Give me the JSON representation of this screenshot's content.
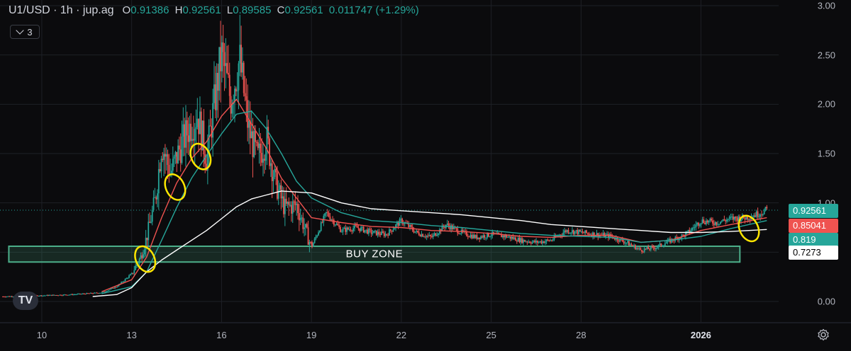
{
  "header": {
    "symbol": "U1/USD · 1h · jup.ag",
    "open_label": "O",
    "open": "0.91386",
    "high_label": "H",
    "high": "0.92561",
    "low_label": "L",
    "low": "0.89585",
    "close_label": "C",
    "close": "0.92561",
    "change": "0.011747 (+1.29%)"
  },
  "indicators_button": {
    "count": "3"
  },
  "annotations": {
    "buy_zone_label": "BUY ZONE"
  },
  "colors": {
    "up": "#26a69a",
    "down": "#ef5350",
    "ma_fast": "#ef5350",
    "ma_mid": "#26a69a",
    "ma_slow": "#ffffff",
    "buy_zone": "#4caf8a",
    "highlight": "#ffe600"
  },
  "price_tags": [
    {
      "value": "0.92561",
      "bg": "#26a69a",
      "fg": "#ffffff"
    },
    {
      "value": "0.85041",
      "bg": "#ef5350",
      "fg": "#ffffff"
    },
    {
      "value": "0.819",
      "bg": "#26a69a",
      "fg": "#ffffff"
    },
    {
      "value": "0.7273",
      "bg": "#ffffff",
      "fg": "#000000"
    }
  ],
  "chart_data": {
    "type": "candlestick",
    "title": "U1/USD · 1h · jup.ag",
    "ylim": [
      -0.25,
      3.0
    ],
    "y_ticks": [
      "3.00",
      "2.50",
      "2.00",
      "1.50",
      "1.00",
      "0.00"
    ],
    "x_ticks": [
      "10",
      "13",
      "16",
      "19",
      "22",
      "25",
      "28",
      "2026"
    ],
    "x_tick_days": [
      10,
      13,
      16,
      19,
      22,
      25,
      28,
      32
    ],
    "xlim_days": [
      8.7,
      34.5
    ],
    "last_price": 0.92561,
    "price_series": {
      "x_days": [
        8.7,
        10,
        11,
        12,
        12.5,
        13,
        13.3,
        13.5,
        13.8,
        14.0,
        14.3,
        14.6,
        14.9,
        15.2,
        15.5,
        15.8,
        16.0,
        16.3,
        16.6,
        16.9,
        17.2,
        17.5,
        17.8,
        18.1,
        18.5,
        19.0,
        19.5,
        20.0,
        20.5,
        21,
        21.5,
        22,
        22.5,
        23,
        23.5,
        24,
        24.5,
        25,
        25.5,
        26,
        26.5,
        27,
        27.5,
        28,
        28.5,
        29,
        29.5,
        30,
        30.5,
        31,
        31.5,
        32,
        32.5,
        33,
        33.5,
        34,
        34.2
      ],
      "close": [
        0.05,
        0.06,
        0.07,
        0.09,
        0.15,
        0.28,
        0.45,
        0.65,
        1.05,
        1.6,
        1.3,
        1.55,
        1.75,
        1.9,
        1.45,
        2.1,
        2.5,
        2.05,
        2.45,
        1.75,
        1.45,
        1.65,
        1.2,
        0.95,
        0.98,
        0.55,
        0.9,
        0.72,
        0.75,
        0.7,
        0.68,
        0.82,
        0.7,
        0.65,
        0.78,
        0.7,
        0.65,
        0.68,
        0.66,
        0.62,
        0.6,
        0.62,
        0.72,
        0.7,
        0.68,
        0.66,
        0.6,
        0.52,
        0.55,
        0.62,
        0.68,
        0.82,
        0.8,
        0.84,
        0.85,
        0.9,
        0.93
      ]
    },
    "series": [
      {
        "name": "",
        "color": "#ef5350",
        "x_days": [
          12,
          13,
          13.5,
          14,
          14.5,
          15,
          15.5,
          16,
          16.5,
          17,
          17.5,
          18,
          18.5,
          19,
          20,
          21,
          22,
          23,
          24,
          25,
          26,
          27,
          28,
          29,
          30,
          31,
          32,
          33,
          34.2
        ],
        "values": [
          0.1,
          0.22,
          0.45,
          0.85,
          1.2,
          1.45,
          1.62,
          1.88,
          2.05,
          1.8,
          1.55,
          1.25,
          1.05,
          0.85,
          0.8,
          0.76,
          0.75,
          0.72,
          0.71,
          0.69,
          0.66,
          0.65,
          0.67,
          0.67,
          0.6,
          0.62,
          0.72,
          0.78,
          0.85
        ]
      },
      {
        "name": "",
        "color": "#26a69a",
        "x_days": [
          12,
          13,
          13.5,
          14,
          14.5,
          15,
          15.5,
          16,
          16.5,
          17,
          17.5,
          18,
          18.5,
          19,
          20,
          21,
          22,
          23,
          24,
          25,
          26,
          27,
          28,
          29,
          30,
          31,
          32,
          33,
          34.2
        ],
        "values": [
          0.08,
          0.15,
          0.3,
          0.62,
          0.95,
          1.25,
          1.48,
          1.7,
          1.9,
          1.93,
          1.75,
          1.5,
          1.22,
          1.05,
          0.9,
          0.82,
          0.8,
          0.77,
          0.75,
          0.72,
          0.69,
          0.67,
          0.66,
          0.65,
          0.6,
          0.62,
          0.66,
          0.74,
          0.82
        ]
      },
      {
        "name": "",
        "color": "#ffffff",
        "x_days": [
          11.7,
          12.5,
          13,
          13.5,
          14,
          14.5,
          15,
          15.5,
          16,
          16.5,
          17,
          17.5,
          18,
          19,
          20,
          21,
          22,
          23,
          24,
          25,
          26,
          27,
          28,
          29,
          30,
          31,
          32,
          33,
          34.2
        ],
        "values": [
          0.05,
          0.07,
          0.14,
          0.3,
          0.42,
          0.52,
          0.62,
          0.72,
          0.84,
          0.96,
          1.04,
          1.08,
          1.12,
          1.1,
          1.0,
          0.94,
          0.92,
          0.9,
          0.88,
          0.85,
          0.82,
          0.78,
          0.76,
          0.74,
          0.72,
          0.7,
          0.7,
          0.71,
          0.73
        ]
      }
    ],
    "buy_zone": {
      "x_days": [
        8.9,
        33.3
      ],
      "y": [
        0.4,
        0.56
      ],
      "label": "BUY ZONE"
    },
    "highlights": [
      {
        "x_day": 13.45,
        "y": 0.43
      },
      {
        "x_day": 14.45,
        "y": 1.16
      },
      {
        "x_day": 15.3,
        "y": 1.47
      },
      {
        "x_day": 33.6,
        "y": 0.74
      }
    ]
  }
}
